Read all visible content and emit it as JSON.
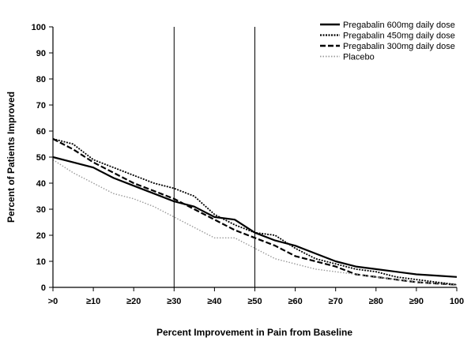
{
  "chart_data": {
    "type": "line",
    "xlabel": "Percent Improvement in Pain from Baseline",
    "ylabel": "Percent of Patients Improved",
    "xlim": [
      0,
      100
    ],
    "ylim": [
      0,
      100
    ],
    "x_ticks": [
      0,
      10,
      20,
      30,
      40,
      50,
      60,
      70,
      80,
      90,
      100
    ],
    "x_tick_labels": [
      ">0",
      "≥10",
      "≥20",
      "≥30",
      "≥40",
      "≥50",
      "≥60",
      "≥70",
      "≥80",
      "≥90",
      "100"
    ],
    "y_ticks": [
      0,
      10,
      20,
      30,
      40,
      50,
      60,
      70,
      80,
      90,
      100
    ],
    "y_tick_labels": [
      "0",
      "10",
      "20",
      "30",
      "40",
      "50",
      "60",
      "70",
      "80",
      "90",
      "100"
    ],
    "reference_lines_x": [
      30,
      50
    ],
    "grid": false,
    "legend_position": "top-right",
    "series": [
      {
        "name": "Pregabalin 600mg daily dose",
        "style": "solid",
        "color": "#000000",
        "x": [
          0,
          5,
          10,
          15,
          20,
          25,
          30,
          35,
          40,
          45,
          50,
          55,
          60,
          65,
          70,
          75,
          80,
          85,
          90,
          95,
          100
        ],
        "y": [
          50,
          48,
          46,
          42,
          39,
          36,
          33,
          31,
          27,
          26,
          21,
          18,
          16,
          13,
          10,
          8,
          7,
          6,
          5,
          4.5,
          4
        ]
      },
      {
        "name": "Pregabalin 450mg daily dose",
        "style": "densely-dotted",
        "color": "#000000",
        "x": [
          0,
          5,
          10,
          15,
          20,
          25,
          30,
          35,
          40,
          45,
          50,
          55,
          60,
          65,
          70,
          75,
          80,
          85,
          90,
          95,
          100
        ],
        "y": [
          57,
          55,
          49,
          46,
          43,
          40,
          38,
          35,
          28,
          24,
          21,
          20,
          15,
          11,
          9,
          7,
          6,
          4,
          3,
          2,
          1
        ]
      },
      {
        "name": "Pregabalin 300mg daily dose",
        "style": "dashed",
        "color": "#000000",
        "x": [
          0,
          5,
          10,
          15,
          20,
          25,
          30,
          35,
          40,
          45,
          50,
          55,
          60,
          65,
          70,
          75,
          80,
          85,
          90,
          95,
          100
        ],
        "y": [
          57,
          53,
          48,
          44,
          40,
          37,
          34,
          30,
          26,
          22,
          19,
          16,
          12,
          10,
          8,
          5,
          4,
          3,
          2,
          1.5,
          1
        ]
      },
      {
        "name": "Placebo",
        "style": "sparse-dotted",
        "color": "#9a9a9a",
        "x": [
          0,
          5,
          10,
          15,
          20,
          25,
          30,
          35,
          40,
          45,
          50,
          55,
          60,
          65,
          70,
          75,
          80,
          85,
          90,
          95,
          100
        ],
        "y": [
          49,
          44,
          40,
          36,
          34,
          31,
          27,
          23,
          19,
          19,
          15,
          11,
          9,
          7,
          6,
          5,
          4,
          3,
          2,
          1.5,
          1
        ]
      }
    ]
  }
}
